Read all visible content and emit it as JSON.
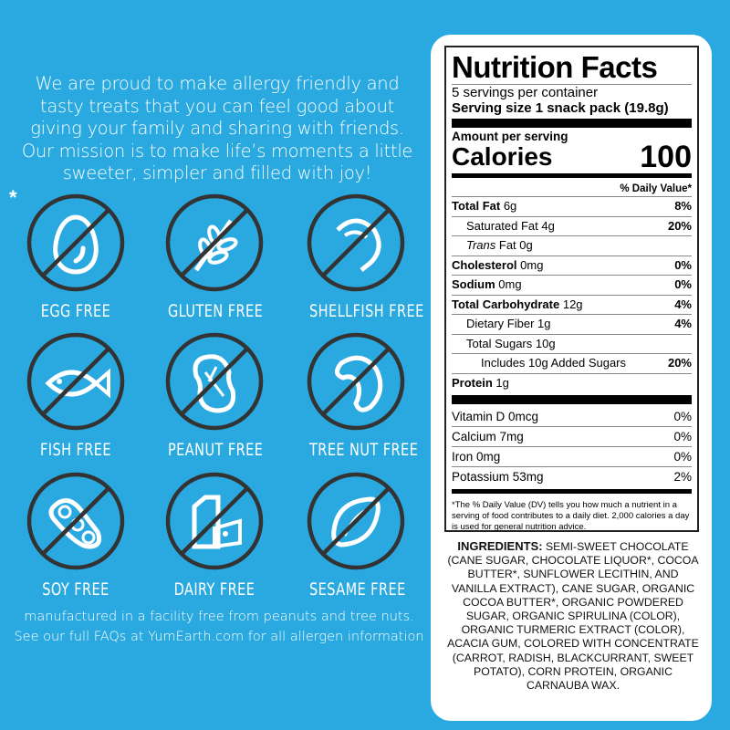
{
  "intro": "We are proud to make allergy friendly and tasty treats that you can feel  good about giving your family and sharing with friends. Our mission is to make life’s moments a little sweeter, simpler and filled with joy!",
  "asterisk": "*",
  "allergens": [
    {
      "label": "EGG FREE",
      "icon": "egg-icon"
    },
    {
      "label": "GLUTEN FREE",
      "icon": "wheat-icon"
    },
    {
      "label": "SHELLFISH FREE",
      "icon": "shrimp-icon"
    },
    {
      "label": "FISH FREE",
      "icon": "fish-icon"
    },
    {
      "label": "PEANUT FREE",
      "icon": "peanut-icon"
    },
    {
      "label": "TREE NUT FREE",
      "icon": "cashew-icon"
    },
    {
      "label": "SOY FREE",
      "icon": "soybean-icon"
    },
    {
      "label": "DAIRY FREE",
      "icon": "milk-cheese-icon"
    },
    {
      "label": "SESAME FREE",
      "icon": "sesame-seed-icon"
    }
  ],
  "footer": {
    "line1": "manufactured in a facility free from peanuts and tree nuts.",
    "line2": "See our full FAQs at YumEarth.com for all allergen information"
  },
  "colors": {
    "background": "#2aa9e0",
    "slash": "#333333"
  },
  "nutrition": {
    "title": "Nutrition Facts",
    "servings": "5 servings per container",
    "serving_size": "Serving size 1 snack pack (19.8g)",
    "amount_per_serving": "Amount per serving",
    "calories_label": "Calories",
    "calories": "100",
    "dv_header": "% Daily Value*",
    "rows": [
      {
        "name": "Total Fat",
        "amount": "6g",
        "dv": "8%"
      },
      {
        "name": "Saturated Fat",
        "amount": "4g",
        "dv": "20%"
      },
      {
        "name": "Trans",
        "amount": "Fat 0g",
        "dv": ""
      },
      {
        "name": "Cholesterol",
        "amount": "0mg",
        "dv": "0%"
      },
      {
        "name": "Sodium",
        "amount": "0mg",
        "dv": "0%"
      },
      {
        "name": "Total Carbohydrate",
        "amount": "12g",
        "dv": "4%"
      },
      {
        "name": "Dietary Fiber",
        "amount": "1g",
        "dv": "4%"
      },
      {
        "name": "Total Sugars",
        "amount": "10g",
        "dv": ""
      },
      {
        "name": "Includes 10g Added Sugars",
        "amount": "",
        "dv": "20%"
      },
      {
        "name": "Protein",
        "amount": "1g",
        "dv": ""
      }
    ],
    "vitamins": [
      {
        "name": "Vitamin D 0mcg",
        "dv": "0%"
      },
      {
        "name": "Calcium 7mg",
        "dv": "0%"
      },
      {
        "name": "Iron 0mg",
        "dv": "0%"
      },
      {
        "name": "Potassium 53mg",
        "dv": "2%"
      }
    ],
    "footnote": "*The % Daily Value (DV) tells you how much a nutrient in a serving of food contributes to a daily diet. 2,000 calories a day is used for general nutrition advice."
  },
  "ingredients": {
    "label": "INGREDIENTS:",
    "text": " SEMI-SWEET CHOCOLATE (CANE SUGAR, CHOCOLATE LIQUOR*, COCOA BUTTER*, SUNFLOWER LECITHIN, AND VANILLA EXTRACT), CANE SUGAR, ORGANIC COCOA BUTTER*, ORGANIC POWDERED SUGAR, ORGANIC SPIRULINA (COLOR), ORGANIC TURMERIC EXTRACT (COLOR), ACACIA GUM, COLORED WITH CONCENTRATE (CARROT, RADISH, BLACKCURRANT, SWEET POTATO), CORN PROTEIN, ORGANIC CARNAUBA WAX."
  }
}
